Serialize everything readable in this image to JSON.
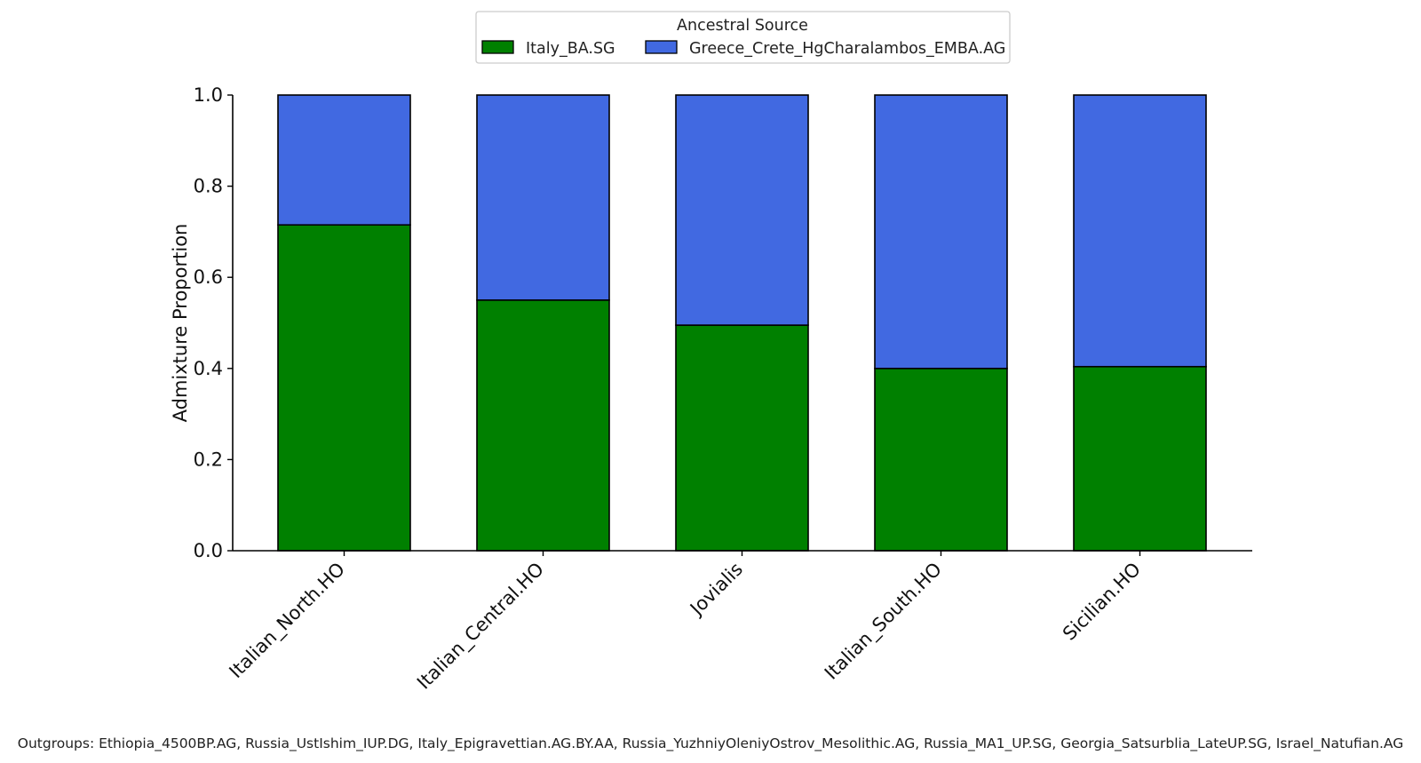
{
  "chart_data": {
    "type": "bar",
    "stacked": true,
    "categories": [
      "Italian_North.HO",
      "Italian_Central.HO",
      "Jovialis",
      "Italian_South.HO",
      "Sicilian.HO"
    ],
    "series": [
      {
        "name": "Italy_BA.SG",
        "color": "#008000",
        "values": [
          0.715,
          0.55,
          0.495,
          0.4,
          0.404
        ]
      },
      {
        "name": "Greece_Crete_HgCharalambos_EMBA.AG",
        "color": "#4169e1",
        "values": [
          0.285,
          0.45,
          0.505,
          0.6,
          0.596
        ]
      }
    ],
    "title": "",
    "xlabel": "",
    "ylabel": "Admixture Proportion",
    "ylim": [
      0,
      1.0
    ],
    "yticks": [
      "0.0",
      "0.2",
      "0.4",
      "0.6",
      "0.8",
      "1.0"
    ],
    "legend": {
      "title": "Ancestral Source",
      "placement": "top-center"
    },
    "grid": false,
    "footnote": "Outgroups: Ethiopia_4500BP.AG, Russia_UstIshim_IUP.DG, Italy_Epigravettian.AG.BY.AA, Russia_YuzhniyOleniyOstrov_Mesolithic.AG, Russia_MA1_UP.SG, Georgia_Satsurblia_LateUP.SG, Israel_Natufian.AG"
  }
}
